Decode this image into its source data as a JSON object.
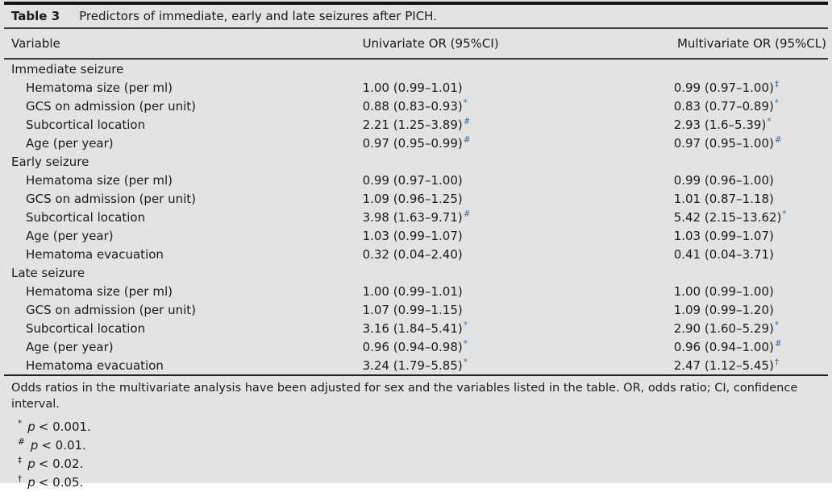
{
  "caption": {
    "label": "Table 3",
    "text": "Predictors of immediate, early and late seizures after PICH."
  },
  "columns": [
    "Variable",
    "Univariate OR (95%CI)",
    "Multivariate OR (95%CL)"
  ],
  "sections": [
    {
      "name": "Immediate seizure",
      "rows": [
        {
          "variable": "Hematoma size (per ml)",
          "univariate": "1.00 (0.99–1.01)",
          "uni_mark": "",
          "multivariate": "0.99 (0.97–1.00)",
          "multi_mark": "‡"
        },
        {
          "variable": "GCS on admission (per unit)",
          "univariate": "0.88 (0.83–0.93)",
          "uni_mark": "*",
          "multivariate": "0.83 (0.77–0.89)",
          "multi_mark": "*"
        },
        {
          "variable": "Subcortical location",
          "univariate": "2.21 (1.25–3.89)",
          "uni_mark": "#",
          "multivariate": "2.93 (1.6–5.39)",
          "multi_mark": "*"
        },
        {
          "variable": "Age (per year)",
          "univariate": "0.97 (0.95–0.99)",
          "uni_mark": "#",
          "multivariate": "0.97 (0.95–1.00)",
          "multi_mark": "#"
        }
      ]
    },
    {
      "name": "Early seizure",
      "rows": [
        {
          "variable": "Hematoma size (per ml)",
          "univariate": "0.99 (0.97–1.00)",
          "uni_mark": "",
          "multivariate": "0.99 (0.96–1.00)",
          "multi_mark": ""
        },
        {
          "variable": "GCS on admission (per unit)",
          "univariate": "1.09 (0.96–1.25)",
          "uni_mark": "",
          "multivariate": "1.01 (0.87–1.18)",
          "multi_mark": ""
        },
        {
          "variable": "Subcortical location",
          "univariate": "3.98 (1.63–9.71)",
          "uni_mark": "#",
          "multivariate": "5.42 (2.15–13.62)",
          "multi_mark": "*"
        },
        {
          "variable": "Age (per year)",
          "univariate": "1.03 (0.99–1.07)",
          "uni_mark": "",
          "multivariate": "1.03 (0.99–1.07)",
          "multi_mark": ""
        },
        {
          "variable": "Hematoma evacuation",
          "univariate": "0.32 (0.04–2.40)",
          "uni_mark": "",
          "multivariate": "0.41 (0.04–3.71)",
          "multi_mark": ""
        }
      ]
    },
    {
      "name": "Late seizure",
      "rows": [
        {
          "variable": "Hematoma size (per ml)",
          "univariate": "1.00 (0.99–1.01)",
          "uni_mark": "",
          "multivariate": "1.00 (0.99–1.00)",
          "multi_mark": ""
        },
        {
          "variable": "GCS on admission (per unit)",
          "univariate": "1.07 (0.99–1.15)",
          "uni_mark": "",
          "multivariate": "1.09 (0.99–1.20)",
          "multi_mark": ""
        },
        {
          "variable": "Subcortical location",
          "univariate": "3.16 (1.84–5.41)",
          "uni_mark": "*",
          "multivariate": "2.90 (1.60–5.29)",
          "multi_mark": "*"
        },
        {
          "variable": "Age (per year)",
          "univariate": "0.96 (0.94–0.98)",
          "uni_mark": "*",
          "multivariate": "0.96 (0.94–1.00)",
          "multi_mark": "#"
        },
        {
          "variable": "Hematoma evacuation",
          "univariate": "3.24 (1.79–5.85)",
          "uni_mark": "*",
          "multivariate": "2.47 (1.12–5.45)",
          "multi_mark": "†"
        }
      ]
    }
  ],
  "footnotes": {
    "general": "Odds ratios in the multivariate analysis have been adjusted for sex and the variables listed in the table. OR, odds ratio; CI, confidence interval.",
    "p_symbol": "p",
    "symbols": [
      {
        "mark": "*",
        "condition": "< 0.001."
      },
      {
        "mark": "#",
        "condition": "< 0.01."
      },
      {
        "mark": "‡",
        "condition": "< 0.02."
      },
      {
        "mark": "†",
        "condition": "< 0.05."
      }
    ]
  },
  "colors": {
    "background": "#e3e3e3",
    "text": "#1b1b1b",
    "marker_accent": "#3a6d9e",
    "rule_dark": "#141414"
  }
}
